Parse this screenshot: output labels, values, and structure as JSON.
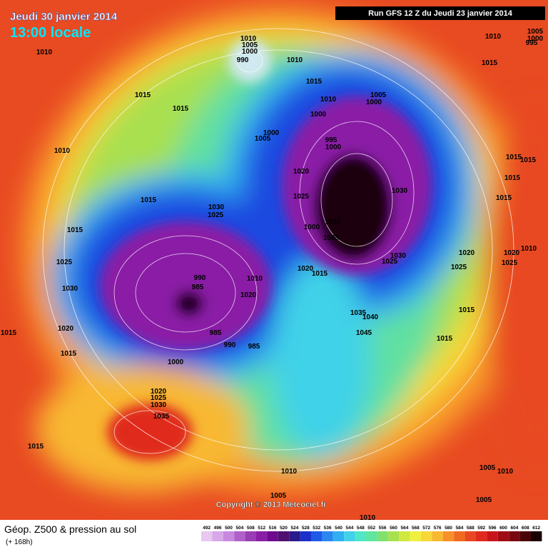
{
  "header": {
    "date": "Jeudi 30 janvier 2014",
    "time": "13:00 locale",
    "run": "Run GFS 12 Z du Jeudi 23 janvier 2014"
  },
  "copyright": "Copyright © 2013 Meteociel.fr",
  "footer": {
    "title": "Géop. Z500 & pression au sol",
    "lead": "(+ 168h)"
  },
  "isobars": [
    1010,
    1010,
    1005,
    1000,
    990,
    1010,
    1015,
    1010,
    1005,
    1000,
    1000,
    1000,
    1005,
    995,
    1000,
    1015,
    1015,
    1010,
    1020,
    1030,
    1025,
    1015,
    1030,
    1025,
    1015,
    1000,
    1010,
    1005,
    1030,
    1025,
    1025,
    1020,
    1015,
    1030,
    990,
    985,
    1010,
    1020,
    1035,
    1040,
    1045,
    1020,
    1015,
    1015,
    985,
    990,
    985,
    1000,
    1015,
    1015,
    1020,
    1025,
    1020,
    1025,
    1010,
    1015,
    1015,
    1015,
    1015,
    1010,
    1015,
    1005,
    1000,
    995,
    1020,
    1025,
    1030,
    1035,
    1015,
    1010,
    1005,
    1010,
    1005,
    1005,
    1010
  ],
  "scale": {
    "values": [
      492,
      496,
      500,
      504,
      508,
      512,
      516,
      520,
      524,
      528,
      532,
      536,
      540,
      544,
      548,
      552,
      556,
      560,
      564,
      568,
      572,
      576,
      580,
      584,
      588,
      592,
      596,
      600,
      604,
      608,
      612
    ],
    "colors": [
      "#e6c8f0",
      "#d8a8e8",
      "#c888e0",
      "#b060c8",
      "#9a3cb4",
      "#8a1ea6",
      "#6e0a8c",
      "#501070",
      "#2a1a8a",
      "#1a30c8",
      "#1e5ae6",
      "#2a86f0",
      "#30b0f0",
      "#40d2e8",
      "#50e6c8",
      "#60e6a0",
      "#80e070",
      "#a8e050",
      "#d0e840",
      "#f0f040",
      "#f8d838",
      "#f8b830",
      "#f89028",
      "#f06a20",
      "#e84820",
      "#e02a1e",
      "#c8141a",
      "#a00a14",
      "#780810",
      "#4a0408",
      "#1a0000"
    ]
  }
}
